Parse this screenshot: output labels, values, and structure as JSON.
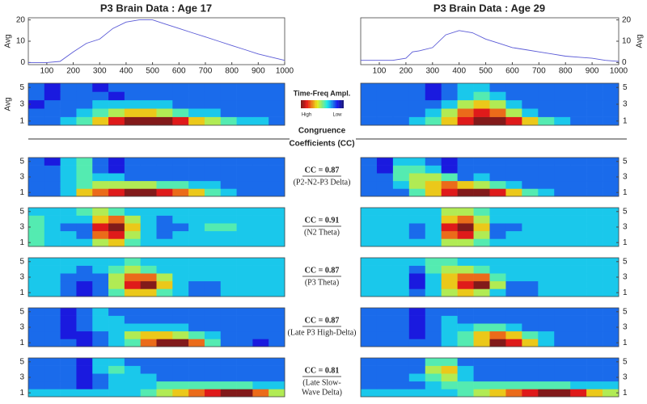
{
  "titles": [
    "P3 Brain Data : Age 17",
    "P3 Brain Data : Age 29"
  ],
  "erp_axis": {
    "xlim": [
      30,
      1000
    ],
    "xticks": [
      100,
      200,
      300,
      400,
      500,
      600,
      700,
      800,
      900,
      1000
    ],
    "ylim": [
      -1,
      21
    ],
    "yticks": [
      0,
      10,
      20
    ],
    "ylabel": "Avg",
    "color": "#5a5ad6"
  },
  "erp": [
    {
      "x": [
        30,
        100,
        150,
        200,
        250,
        300,
        350,
        400,
        450,
        500,
        550,
        600,
        650,
        700,
        750,
        800,
        850,
        900,
        950,
        1000
      ],
      "values": [
        0,
        0,
        0.5,
        5,
        9,
        11,
        16,
        19,
        20,
        20,
        18,
        16,
        14,
        12,
        10,
        8,
        6,
        4,
        2.5,
        1
      ]
    },
    {
      "x": [
        30,
        100,
        150,
        200,
        225,
        250,
        300,
        350,
        400,
        450,
        500,
        550,
        600,
        650,
        700,
        750,
        800,
        850,
        900,
        950,
        1000
      ],
      "values": [
        1,
        1,
        1,
        2,
        5,
        5.5,
        7,
        13,
        15,
        14,
        11,
        9,
        7,
        6,
        5,
        4,
        3,
        2.5,
        2,
        1,
        0.5
      ]
    }
  ],
  "heatmap_axis": {
    "ylim": [
      0.5,
      5.5
    ],
    "yticks": [
      1,
      3,
      5
    ],
    "zlim": [
      0,
      9
    ],
    "avg_label": "Avg"
  },
  "legend": {
    "title": "Time-Freq Ampl.",
    "high": "High",
    "low": "Low"
  },
  "cc_header": [
    "Congruence",
    "Coefficients (CC)"
  ],
  "avg_maps": [
    [
      [
        2,
        2,
        3,
        4,
        6,
        8,
        9,
        9,
        9,
        8,
        6,
        5,
        4,
        3,
        3,
        2
      ],
      [
        2,
        2,
        2,
        3,
        4,
        5,
        6,
        6,
        5,
        4,
        3,
        3,
        2,
        2,
        2,
        2
      ],
      [
        1,
        2,
        2,
        2,
        3,
        3,
        3,
        3,
        3,
        2,
        2,
        2,
        2,
        2,
        2,
        2
      ],
      [
        2,
        1,
        2,
        2,
        2,
        1,
        2,
        2,
        2,
        2,
        2,
        2,
        2,
        2,
        2,
        2
      ],
      [
        2,
        1,
        2,
        2,
        1,
        2,
        2,
        2,
        2,
        2,
        2,
        2,
        2,
        2,
        2,
        2
      ]
    ],
    [
      [
        2,
        2,
        2,
        3,
        4,
        6,
        8,
        9,
        9,
        8,
        6,
        4,
        3,
        2,
        2,
        2
      ],
      [
        2,
        2,
        2,
        2,
        3,
        5,
        7,
        8,
        7,
        5,
        3,
        2,
        2,
        2,
        2,
        2
      ],
      [
        2,
        2,
        2,
        2,
        2,
        3,
        5,
        6,
        5,
        3,
        2,
        2,
        2,
        2,
        2,
        2
      ],
      [
        2,
        2,
        2,
        2,
        1,
        2,
        3,
        4,
        3,
        2,
        2,
        2,
        2,
        2,
        2,
        2
      ],
      [
        2,
        2,
        2,
        2,
        1,
        2,
        3,
        3,
        2,
        2,
        2,
        2,
        2,
        2,
        2,
        2
      ]
    ]
  ],
  "components": [
    {
      "cc": "CC = 0.87",
      "name": [
        "(P2-N2-P3 Delta)"
      ],
      "maps": [
        [
          [
            2,
            2,
            3,
            6,
            7,
            8,
            9,
            9,
            8,
            7,
            6,
            4,
            3,
            2,
            2,
            2
          ],
          [
            2,
            2,
            3,
            4,
            5,
            5,
            5,
            5,
            4,
            4,
            3,
            3,
            2,
            2,
            2,
            2
          ],
          [
            2,
            2,
            3,
            4,
            3,
            3,
            2,
            2,
            2,
            2,
            2,
            2,
            2,
            2,
            2,
            2
          ],
          [
            2,
            2,
            3,
            4,
            2,
            1,
            2,
            2,
            2,
            2,
            2,
            2,
            2,
            2,
            2,
            2
          ],
          [
            2,
            1,
            3,
            4,
            2,
            1,
            2,
            2,
            2,
            2,
            2,
            2,
            2,
            2,
            2,
            2
          ]
        ],
        [
          [
            2,
            2,
            2,
            4,
            6,
            8,
            9,
            9,
            8,
            6,
            4,
            3,
            2,
            2,
            2,
            2
          ],
          [
            2,
            2,
            3,
            5,
            6,
            7,
            6,
            5,
            4,
            3,
            2,
            2,
            2,
            2,
            2,
            2
          ],
          [
            2,
            2,
            4,
            5,
            5,
            4,
            2,
            3,
            2,
            2,
            2,
            2,
            2,
            2,
            2,
            2
          ],
          [
            2,
            1,
            4,
            4,
            3,
            1,
            2,
            2,
            2,
            2,
            2,
            2,
            2,
            2,
            2,
            2
          ],
          [
            2,
            1,
            3,
            3,
            2,
            1,
            2,
            2,
            2,
            2,
            2,
            2,
            2,
            2,
            2,
            2
          ]
        ]
      ]
    },
    {
      "cc": "CC = 0.91",
      "name": [
        "(N2 Theta)"
      ],
      "maps": [
        [
          [
            4,
            3,
            3,
            3,
            5,
            6,
            4,
            3,
            3,
            3,
            3,
            3,
            3,
            3,
            3,
            3
          ],
          [
            4,
            3,
            3,
            2,
            7,
            8,
            5,
            3,
            2,
            3,
            3,
            3,
            3,
            3,
            3,
            3
          ],
          [
            4,
            3,
            2,
            2,
            8,
            9,
            6,
            3,
            2,
            2,
            3,
            4,
            4,
            3,
            3,
            3
          ],
          [
            4,
            3,
            3,
            3,
            6,
            7,
            5,
            3,
            2,
            3,
            3,
            3,
            3,
            3,
            3,
            3
          ],
          [
            3,
            3,
            3,
            4,
            5,
            4,
            3,
            3,
            3,
            3,
            3,
            3,
            3,
            3,
            3,
            3
          ]
        ],
        [
          [
            3,
            3,
            3,
            3,
            3,
            5,
            5,
            4,
            3,
            3,
            3,
            3,
            3,
            3,
            3,
            3
          ],
          [
            3,
            3,
            3,
            2,
            3,
            7,
            8,
            5,
            2,
            3,
            3,
            3,
            3,
            3,
            3,
            3
          ],
          [
            3,
            3,
            3,
            2,
            3,
            8,
            9,
            6,
            2,
            2,
            3,
            3,
            3,
            3,
            3,
            3
          ],
          [
            3,
            3,
            3,
            3,
            3,
            6,
            7,
            5,
            3,
            3,
            3,
            3,
            3,
            3,
            3,
            3
          ],
          [
            3,
            3,
            3,
            3,
            3,
            5,
            5,
            4,
            3,
            3,
            3,
            3,
            3,
            3,
            3,
            3
          ]
        ]
      ]
    },
    {
      "cc": "CC = 0.87",
      "name": [
        "(P3 Theta)"
      ],
      "maps": [
        [
          [
            3,
            3,
            2,
            1,
            2,
            4,
            6,
            6,
            4,
            3,
            2,
            2,
            3,
            3,
            3,
            3
          ],
          [
            3,
            3,
            2,
            1,
            2,
            5,
            8,
            9,
            6,
            3,
            2,
            2,
            3,
            3,
            3,
            3
          ],
          [
            3,
            3,
            2,
            2,
            2,
            5,
            7,
            7,
            5,
            3,
            3,
            3,
            3,
            3,
            3,
            3
          ],
          [
            3,
            3,
            3,
            2,
            3,
            4,
            5,
            4,
            3,
            3,
            3,
            3,
            3,
            3,
            3,
            3
          ],
          [
            3,
            3,
            3,
            3,
            3,
            3,
            4,
            3,
            3,
            3,
            3,
            3,
            3,
            3,
            3,
            3
          ]
        ],
        [
          [
            3,
            3,
            3,
            2,
            3,
            5,
            6,
            5,
            3,
            2,
            2,
            3,
            3,
            3,
            3,
            3
          ],
          [
            3,
            3,
            3,
            1,
            3,
            6,
            8,
            9,
            5,
            2,
            2,
            3,
            3,
            3,
            3,
            3
          ],
          [
            3,
            3,
            3,
            1,
            3,
            6,
            7,
            7,
            4,
            3,
            3,
            3,
            3,
            3,
            3,
            3
          ],
          [
            3,
            3,
            3,
            2,
            4,
            5,
            5,
            4,
            3,
            3,
            3,
            3,
            3,
            3,
            3,
            3
          ],
          [
            3,
            3,
            3,
            3,
            4,
            4,
            3,
            3,
            3,
            3,
            3,
            3,
            3,
            3,
            3,
            3
          ]
        ]
      ]
    },
    {
      "cc": "CC = 0.87",
      "name": [
        "(Late P3 High-Delta)"
      ],
      "maps": [
        [
          [
            2,
            2,
            2,
            1,
            2,
            3,
            4,
            7,
            9,
            9,
            7,
            4,
            2,
            2,
            1,
            2
          ],
          [
            2,
            2,
            1,
            1,
            2,
            3,
            5,
            6,
            6,
            5,
            4,
            3,
            2,
            2,
            2,
            2
          ],
          [
            2,
            2,
            1,
            2,
            3,
            3,
            3,
            3,
            3,
            3,
            2,
            2,
            2,
            2,
            2,
            2
          ],
          [
            2,
            2,
            1,
            2,
            3,
            3,
            2,
            2,
            2,
            2,
            2,
            2,
            2,
            2,
            2,
            2
          ],
          [
            2,
            2,
            1,
            2,
            3,
            2,
            2,
            2,
            2,
            2,
            2,
            2,
            2,
            2,
            2,
            2
          ]
        ],
        [
          [
            2,
            2,
            2,
            2,
            2,
            3,
            4,
            6,
            9,
            8,
            6,
            3,
            2,
            2,
            2,
            2
          ],
          [
            2,
            2,
            2,
            1,
            2,
            3,
            4,
            6,
            7,
            6,
            4,
            3,
            2,
            2,
            2,
            2
          ],
          [
            2,
            2,
            2,
            1,
            2,
            3,
            3,
            4,
            4,
            3,
            2,
            2,
            2,
            2,
            2,
            2
          ],
          [
            2,
            2,
            2,
            1,
            2,
            3,
            2,
            2,
            2,
            2,
            2,
            2,
            2,
            2,
            2,
            2
          ],
          [
            2,
            2,
            2,
            1,
            2,
            2,
            2,
            2,
            2,
            2,
            2,
            2,
            2,
            2,
            2,
            2
          ]
        ]
      ]
    },
    {
      "cc": "CC = 0.81",
      "name": [
        "(Late Slow-",
        "Wave Delta)"
      ],
      "maps": [
        [
          [
            3,
            3,
            3,
            3,
            3,
            3,
            3,
            4,
            5,
            6,
            7,
            8,
            9,
            9,
            7,
            5
          ],
          [
            2,
            2,
            2,
            1,
            2,
            3,
            3,
            3,
            4,
            4,
            4,
            4,
            4,
            4,
            3,
            3
          ],
          [
            2,
            2,
            2,
            1,
            2,
            3,
            3,
            3,
            2,
            2,
            2,
            2,
            2,
            2,
            2,
            2
          ],
          [
            2,
            2,
            2,
            1,
            3,
            4,
            3,
            2,
            2,
            2,
            2,
            2,
            2,
            2,
            2,
            2
          ],
          [
            2,
            2,
            2,
            1,
            3,
            3,
            2,
            2,
            2,
            2,
            2,
            2,
            2,
            2,
            2,
            2
          ]
        ],
        [
          [
            3,
            3,
            3,
            3,
            3,
            3,
            4,
            5,
            6,
            7,
            8,
            9,
            9,
            8,
            6,
            5
          ],
          [
            2,
            2,
            2,
            2,
            3,
            4,
            4,
            4,
            4,
            4,
            4,
            4,
            4,
            3,
            3,
            3
          ],
          [
            2,
            2,
            2,
            3,
            4,
            5,
            3,
            2,
            2,
            2,
            2,
            2,
            2,
            2,
            2,
            2
          ],
          [
            2,
            2,
            2,
            2,
            5,
            6,
            3,
            2,
            2,
            2,
            2,
            2,
            2,
            2,
            2,
            2
          ],
          [
            2,
            2,
            2,
            2,
            4,
            4,
            2,
            2,
            2,
            2,
            2,
            2,
            2,
            2,
            2,
            2
          ]
        ]
      ]
    }
  ]
}
